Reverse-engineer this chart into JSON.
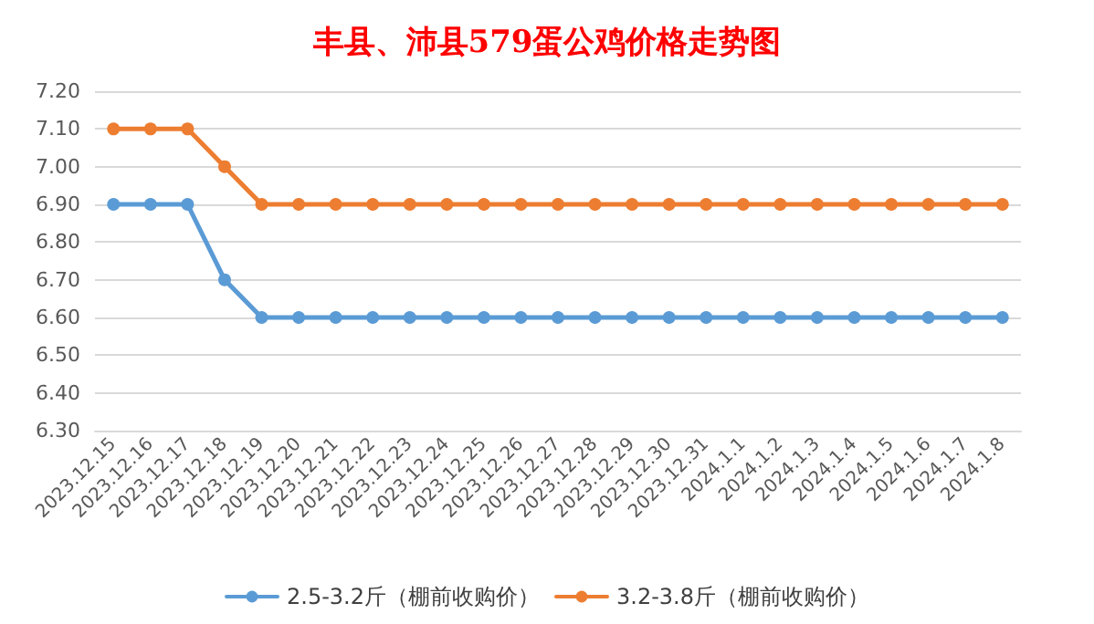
{
  "chart_data": {
    "type": "line",
    "title": "丰县、沛县579蛋公鸡价格走势图",
    "categories": [
      "2023.12.15",
      "2023.12.16",
      "2023.12.17",
      "2023.12.18",
      "2023.12.19",
      "2023.12.20",
      "2023.12.21",
      "2023.12.22",
      "2023.12.23",
      "2023.12.24",
      "2023.12.25",
      "2023.12.26",
      "2023.12.27",
      "2023.12.28",
      "2023.12.29",
      "2023.12.30",
      "2023.12.31",
      "2024.1.1",
      "2024.1.2",
      "2024.1.3",
      "2024.1.4",
      "2024.1.5",
      "2024.1.6",
      "2024.1.7",
      "2024.1.8"
    ],
    "series": [
      {
        "name": "2.5-3.2斤（棚前收购价）",
        "color": "#5b9bd5",
        "values": [
          6.9,
          6.9,
          6.9,
          6.7,
          6.6,
          6.6,
          6.6,
          6.6,
          6.6,
          6.6,
          6.6,
          6.6,
          6.6,
          6.6,
          6.6,
          6.6,
          6.6,
          6.6,
          6.6,
          6.6,
          6.6,
          6.6,
          6.6,
          6.6,
          6.6
        ]
      },
      {
        "name": "3.2-3.8斤（棚前收购价）",
        "color": "#ed7d31",
        "values": [
          7.1,
          7.1,
          7.1,
          7.0,
          6.9,
          6.9,
          6.9,
          6.9,
          6.9,
          6.9,
          6.9,
          6.9,
          6.9,
          6.9,
          6.9,
          6.9,
          6.9,
          6.9,
          6.9,
          6.9,
          6.9,
          6.9,
          6.9,
          6.9,
          6.9
        ]
      }
    ],
    "ylim": [
      6.3,
      7.2
    ],
    "yticks": [
      {
        "value": 6.3,
        "label": "6.30"
      },
      {
        "value": 6.4,
        "label": "6.40"
      },
      {
        "value": 6.5,
        "label": "6.50"
      },
      {
        "value": 6.6,
        "label": "6.60"
      },
      {
        "value": 6.7,
        "label": "6.70"
      },
      {
        "value": 6.8,
        "label": "6.80"
      },
      {
        "value": 6.9,
        "label": "6.90"
      },
      {
        "value": 7.0,
        "label": "7.00"
      },
      {
        "value": 7.1,
        "label": "7.10"
      },
      {
        "value": 7.2,
        "label": "7.20"
      }
    ],
    "grid": "y",
    "legend": "bottom",
    "marker": "circle",
    "line_style": "solid"
  }
}
